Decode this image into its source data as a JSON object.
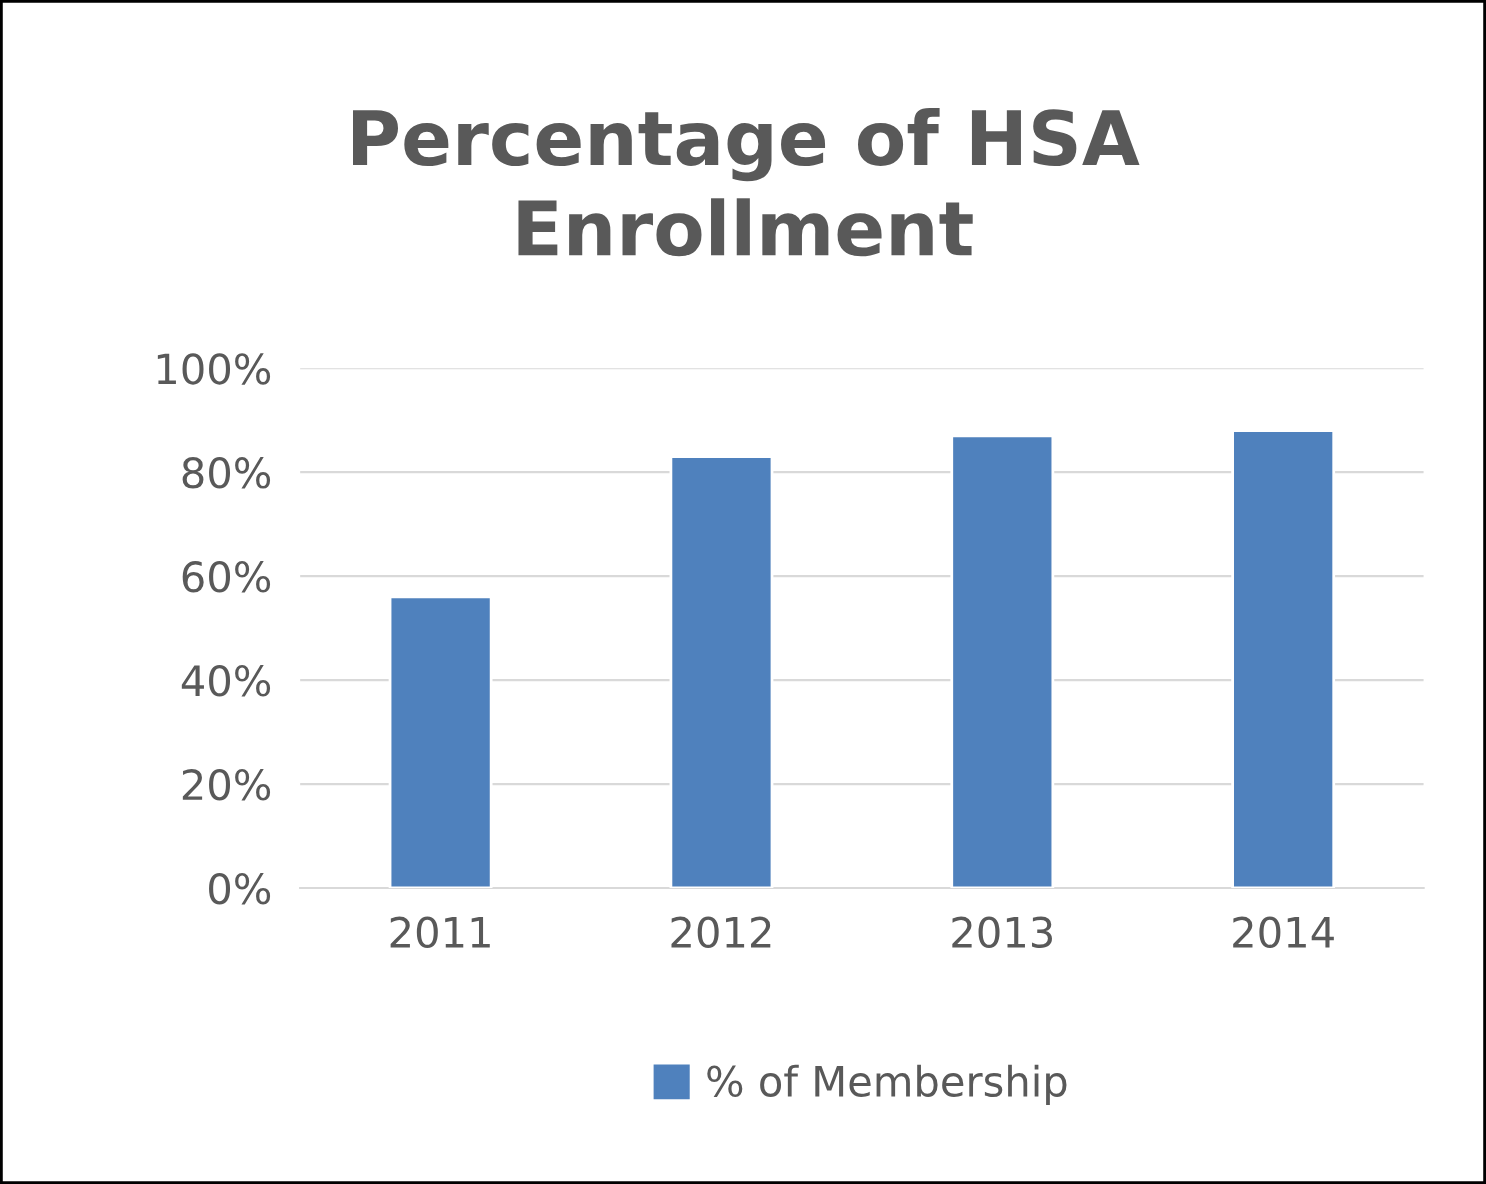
{
  "chart_data": {
    "type": "bar",
    "title": "Percentage of HSA\nEnrollment",
    "categories": [
      "2011",
      "2012",
      "2013",
      "2014"
    ],
    "series": [
      {
        "name": "% of Membership",
        "color": "#4f81bd",
        "values": [
          56,
          83,
          87,
          88
        ]
      }
    ],
    "ylim": [
      0,
      100
    ],
    "yticks": [
      {
        "value": 0,
        "label": "0%"
      },
      {
        "value": 20,
        "label": "20%"
      },
      {
        "value": 40,
        "label": "40%"
      },
      {
        "value": 60,
        "label": "60%"
      },
      {
        "value": 80,
        "label": "80%"
      },
      {
        "value": 100,
        "label": "100%"
      }
    ],
    "grid": "y",
    "legend": "bottom"
  }
}
